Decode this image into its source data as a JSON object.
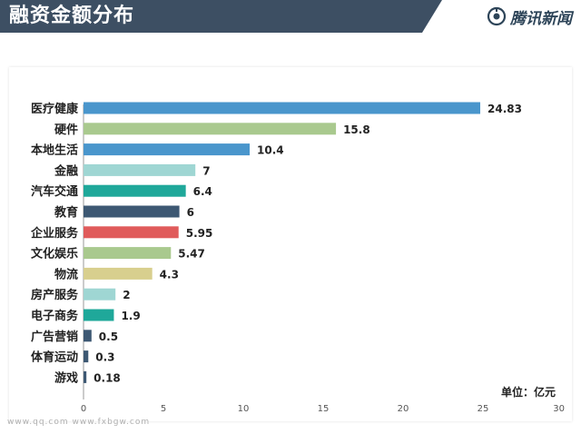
{
  "header": {
    "title": "融资金额分布",
    "brand": "腾讯新闻",
    "brand_icon": "tencent-news-icon",
    "background": "#3d4f63"
  },
  "chart_data": {
    "type": "bar",
    "orientation": "horizontal",
    "categories": [
      "医疗健康",
      "硬件",
      "本地生活",
      "金融",
      "汽车交通",
      "教育",
      "企业服务",
      "文化娱乐",
      "物流",
      "房产服务",
      "电子商务",
      "广告营销",
      "体育运动",
      "游戏"
    ],
    "values": [
      24.83,
      15.8,
      10.4,
      7,
      6.4,
      6,
      5.95,
      5.47,
      4.3,
      2,
      1.9,
      0.5,
      0.3,
      0.18
    ],
    "value_labels": [
      "24.83",
      "15.8",
      "10.4",
      "7",
      "6.4",
      "6",
      "5.95",
      "5.47",
      "4.3",
      "2",
      "1.9",
      "0.5",
      "0.3",
      "0.18"
    ],
    "colors": [
      "#4a96cc",
      "#a9c98e",
      "#4a96cc",
      "#9fd6d3",
      "#1fa89a",
      "#3d5873",
      "#e05b5b",
      "#a9c98e",
      "#d8cf8e",
      "#9fd6d3",
      "#1fa89a",
      "#3d5873",
      "#3d5873",
      "#3d5873"
    ],
    "x_ticks": [
      "0",
      "5",
      "10",
      "15",
      "20",
      "25",
      "30"
    ],
    "xlim": [
      0,
      30
    ],
    "unit": "单位：亿元",
    "grid": false
  },
  "watermark": "www.qq.com  www.fxbgw.com"
}
